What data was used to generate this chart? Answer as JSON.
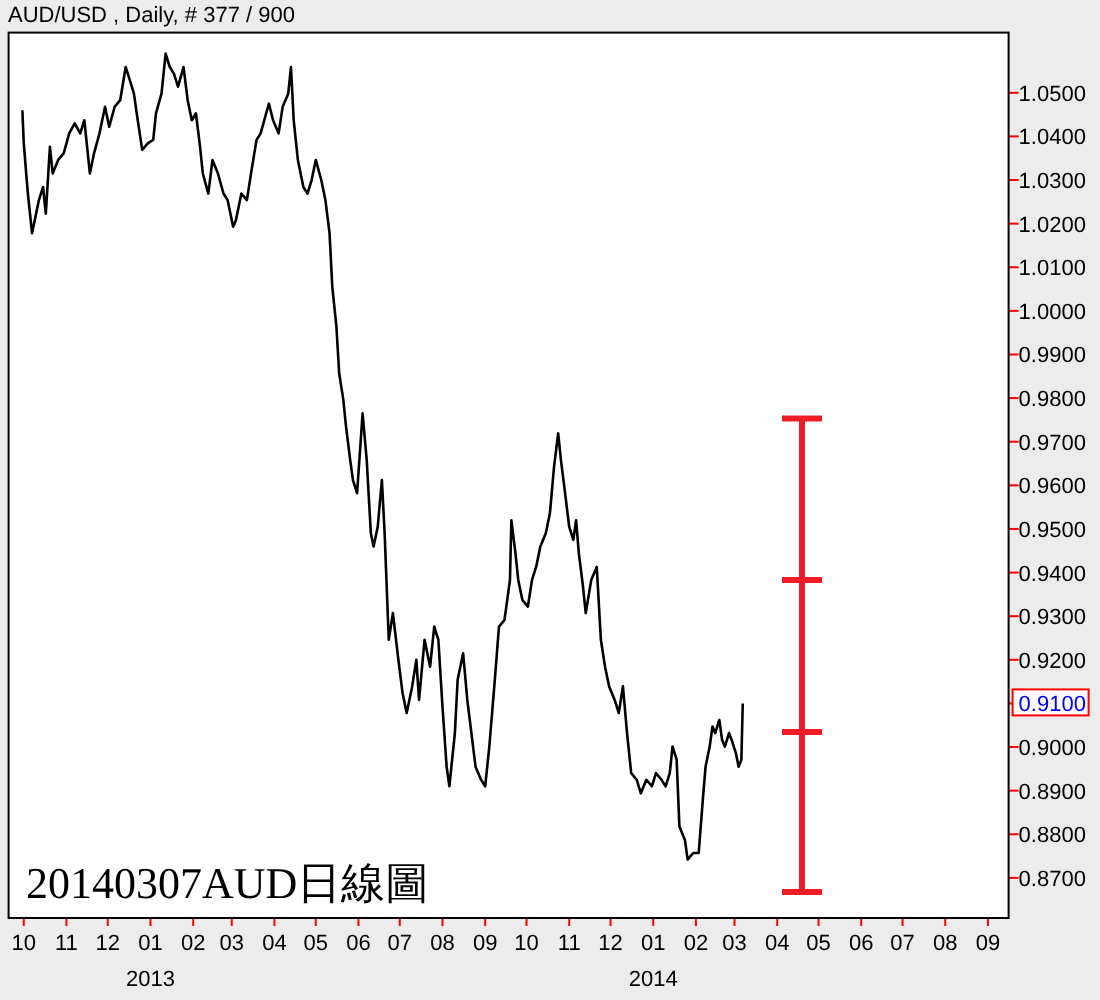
{
  "chart_data": {
    "type": "line",
    "title": "AUD/USD , Daily, # 377 / 900",
    "annotations": [
      "20140307AUD日線圖",
      {
        "text": "0.9100",
        "y": 0.91
      }
    ],
    "x": [
      "2012-09-30",
      "2012-10-01",
      "2012-10-04",
      "2012-10-07",
      "2012-10-09",
      "2012-10-12",
      "2012-10-15",
      "2012-10-17",
      "2012-10-20",
      "2012-10-22",
      "2012-10-26",
      "2012-10-30",
      "2012-11-03",
      "2012-11-07",
      "2012-11-11",
      "2012-11-14",
      "2012-11-18",
      "2012-11-21",
      "2012-11-25",
      "2012-11-29",
      "2012-12-02",
      "2012-12-06",
      "2012-12-10",
      "2012-12-14",
      "2012-12-17",
      "2012-12-20",
      "2012-12-22",
      "2012-12-26",
      "2012-12-30",
      "2013-01-03",
      "2013-01-05",
      "2013-01-09",
      "2013-01-12",
      "2013-01-15",
      "2013-01-18",
      "2013-01-21",
      "2013-01-25",
      "2013-01-28",
      "2013-01-31",
      "2013-02-03",
      "2013-02-06",
      "2013-02-08",
      "2013-02-12",
      "2013-02-15",
      "2013-02-19",
      "2013-02-23",
      "2013-02-26",
      "2013-03-02",
      "2013-03-04",
      "2013-03-08",
      "2013-03-12",
      "2013-03-15",
      "2013-03-19",
      "2013-03-22",
      "2013-03-26",
      "2013-03-28",
      "2013-03-31",
      "2013-04-04",
      "2013-04-07",
      "2013-04-11",
      "2013-04-13",
      "2013-04-15",
      "2013-04-18",
      "2013-04-22",
      "2013-04-25",
      "2013-04-28",
      "2013-05-01",
      "2013-05-05",
      "2013-05-08",
      "2013-05-11",
      "2013-05-13",
      "2013-05-16",
      "2013-05-18",
      "2013-05-21",
      "2013-05-23",
      "2013-05-26",
      "2013-05-28",
      "2013-05-31",
      "2013-06-04",
      "2013-06-07",
      "2013-06-10",
      "2013-06-12",
      "2013-06-15",
      "2013-06-18",
      "2013-06-20",
      "2013-06-23",
      "2013-06-26",
      "2013-06-30",
      "2013-07-03",
      "2013-07-06",
      "2013-07-10",
      "2013-07-13",
      "2013-07-15",
      "2013-07-19",
      "2013-07-23",
      "2013-07-26",
      "2013-07-29",
      "2013-08-01",
      "2013-08-04",
      "2013-08-06",
      "2013-08-10",
      "2013-08-12",
      "2013-08-16",
      "2013-08-19",
      "2013-08-22",
      "2013-08-25",
      "2013-08-29",
      "2013-09-01",
      "2013-09-04",
      "2013-09-08",
      "2013-09-11",
      "2013-09-15",
      "2013-09-19",
      "2013-09-20",
      "2013-09-23",
      "2013-09-25",
      "2013-09-28",
      "2013-10-02",
      "2013-10-05",
      "2013-10-08",
      "2013-10-11",
      "2013-10-15",
      "2013-10-18",
      "2013-10-21",
      "2013-10-24",
      "2013-10-26",
      "2013-10-29",
      "2013-11-01",
      "2013-11-04",
      "2013-11-06",
      "2013-11-08",
      "2013-11-11",
      "2013-11-13",
      "2013-11-17",
      "2013-11-21",
      "2013-11-24",
      "2013-11-27",
      "2013-11-30",
      "2013-12-04",
      "2013-12-07",
      "2013-12-10",
      "2013-12-13",
      "2013-12-16",
      "2013-12-20",
      "2013-12-23",
      "2013-12-27",
      "2013-12-31",
      "2014-01-03",
      "2014-01-07",
      "2014-01-10",
      "2014-01-13",
      "2014-01-15",
      "2014-01-18",
      "2014-01-20",
      "2014-01-24",
      "2014-01-26",
      "2014-01-30",
      "2014-02-03",
      "2014-02-06",
      "2014-02-08",
      "2014-02-11",
      "2014-02-13",
      "2014-02-15",
      "2014-02-18",
      "2014-02-20",
      "2014-02-22",
      "2014-02-25",
      "2014-02-27",
      "2014-03-02",
      "2014-03-04",
      "2014-03-06",
      "2014-03-07"
    ],
    "series": [
      {
        "color": "#000000",
        "values": [
          1.046,
          1.0384,
          1.0269,
          1.0178,
          1.0208,
          1.0254,
          1.0284,
          1.0223,
          1.0376,
          1.0315,
          1.0346,
          1.0361,
          1.0407,
          1.043,
          1.0407,
          1.0437,
          1.0315,
          1.0361,
          1.0407,
          1.0468,
          1.0422,
          1.0468,
          1.0483,
          1.0559,
          1.0529,
          1.0498,
          1.0453,
          1.0369,
          1.0384,
          1.0392,
          1.0453,
          1.0498,
          1.059,
          1.0559,
          1.0544,
          1.0514,
          1.0559,
          1.0483,
          1.0437,
          1.0453,
          1.0376,
          1.0315,
          1.0269,
          1.0346,
          1.0315,
          1.0269,
          1.0254,
          1.0193,
          1.0208,
          1.0269,
          1.0254,
          1.0315,
          1.0392,
          1.0407,
          1.0453,
          1.0475,
          1.0437,
          1.0407,
          1.0468,
          1.0498,
          1.0559,
          1.0437,
          1.0346,
          1.0284,
          1.0269,
          1.03,
          1.0346,
          1.03,
          1.0254,
          1.0178,
          1.0055,
          0.9964,
          0.9857,
          0.9796,
          0.9734,
          0.9658,
          0.9612,
          0.9582,
          0.9765,
          0.9658,
          0.949,
          0.946,
          0.9505,
          0.9612,
          0.949,
          0.9246,
          0.9307,
          0.92,
          0.9124,
          0.9078,
          0.9139,
          0.92,
          0.9108,
          0.9246,
          0.9184,
          0.9276,
          0.9246,
          0.9093,
          0.8955,
          0.891,
          0.9032,
          0.9154,
          0.9215,
          0.9108,
          0.9032,
          0.8955,
          0.8925,
          0.891,
          0.9001,
          0.9154,
          0.9276,
          0.9291,
          0.9383,
          0.952,
          0.9444,
          0.9383,
          0.9337,
          0.9322,
          0.9383,
          0.9413,
          0.9459,
          0.949,
          0.9536,
          0.9643,
          0.9719,
          0.9658,
          0.9582,
          0.9505,
          0.9475,
          0.952,
          0.9444,
          0.9368,
          0.9307,
          0.9383,
          0.9413,
          0.9246,
          0.9184,
          0.9139,
          0.9108,
          0.9078,
          0.9139,
          0.9032,
          0.894,
          0.8925,
          0.8894,
          0.8925,
          0.891,
          0.894,
          0.8925,
          0.891,
          0.894,
          0.9001,
          0.8971,
          0.8818,
          0.8787,
          0.8742,
          0.8757,
          0.8757,
          0.8879,
          0.8955,
          0.9001,
          0.9047,
          0.9032,
          0.9062,
          0.9016,
          0.9001,
          0.9032,
          0.9016,
          0.8986,
          0.8955,
          0.8971,
          0.91
        ]
      }
    ],
    "xlim": [
      "2012-09-20",
      "2014-09-16"
    ],
    "xticks": [
      {
        "value": "2012-10-01",
        "label": "10"
      },
      {
        "value": "2012-11-01",
        "label": "11"
      },
      {
        "value": "2012-12-01",
        "label": "12"
      },
      {
        "value": "2013-01-01",
        "label": "01\n2013"
      },
      {
        "value": "2013-02-01",
        "label": "02"
      },
      {
        "value": "2013-03-01",
        "label": "03"
      },
      {
        "value": "2013-04-01",
        "label": "04"
      },
      {
        "value": "2013-05-01",
        "label": "05"
      },
      {
        "value": "2013-06-01",
        "label": "06"
      },
      {
        "value": "2013-07-01",
        "label": "07"
      },
      {
        "value": "2013-08-01",
        "label": "08"
      },
      {
        "value": "2013-09-01",
        "label": "09"
      },
      {
        "value": "2013-10-01",
        "label": "10"
      },
      {
        "value": "2013-11-01",
        "label": "11"
      },
      {
        "value": "2013-12-01",
        "label": "12"
      },
      {
        "value": "2014-01-01",
        "label": "01\n2014"
      },
      {
        "value": "2014-02-01",
        "label": "02"
      },
      {
        "value": "2014-03-01",
        "label": "03"
      },
      {
        "value": "2014-04-01",
        "label": "04"
      },
      {
        "value": "2014-05-01",
        "label": "05"
      },
      {
        "value": "2014-06-01",
        "label": "06"
      },
      {
        "value": "2014-07-01",
        "label": "07"
      },
      {
        "value": "2014-08-01",
        "label": "08"
      },
      {
        "value": "2014-09-01",
        "label": "09"
      }
    ],
    "ylim": [
      0.8608,
      1.0638
    ],
    "yticks": [
      {
        "value": 0.87,
        "label": "0.8700"
      },
      {
        "value": 0.88,
        "label": "0.8800"
      },
      {
        "value": 0.89,
        "label": "0.8900"
      },
      {
        "value": 0.9,
        "label": "0.9000"
      },
      {
        "value": 0.91,
        "label": null
      },
      {
        "value": 0.92,
        "label": "0.9200"
      },
      {
        "value": 0.93,
        "label": "0.9300"
      },
      {
        "value": 0.94,
        "label": "0.9400"
      },
      {
        "value": 0.95,
        "label": "0.9500"
      },
      {
        "value": 0.96,
        "label": "0.9600"
      },
      {
        "value": 0.97,
        "label": "0.9700"
      },
      {
        "value": 0.98,
        "label": "0.9800"
      },
      {
        "value": 0.99,
        "label": "0.9900"
      },
      {
        "value": 1.0,
        "label": "1.0000"
      },
      {
        "value": 1.01,
        "label": "1.0100"
      },
      {
        "value": 1.02,
        "label": "1.0200"
      },
      {
        "value": 1.03,
        "label": "1.0300"
      },
      {
        "value": 1.04,
        "label": "1.0400"
      },
      {
        "value": 1.05,
        "label": "1.0500"
      }
    ],
    "grid": false
  }
}
